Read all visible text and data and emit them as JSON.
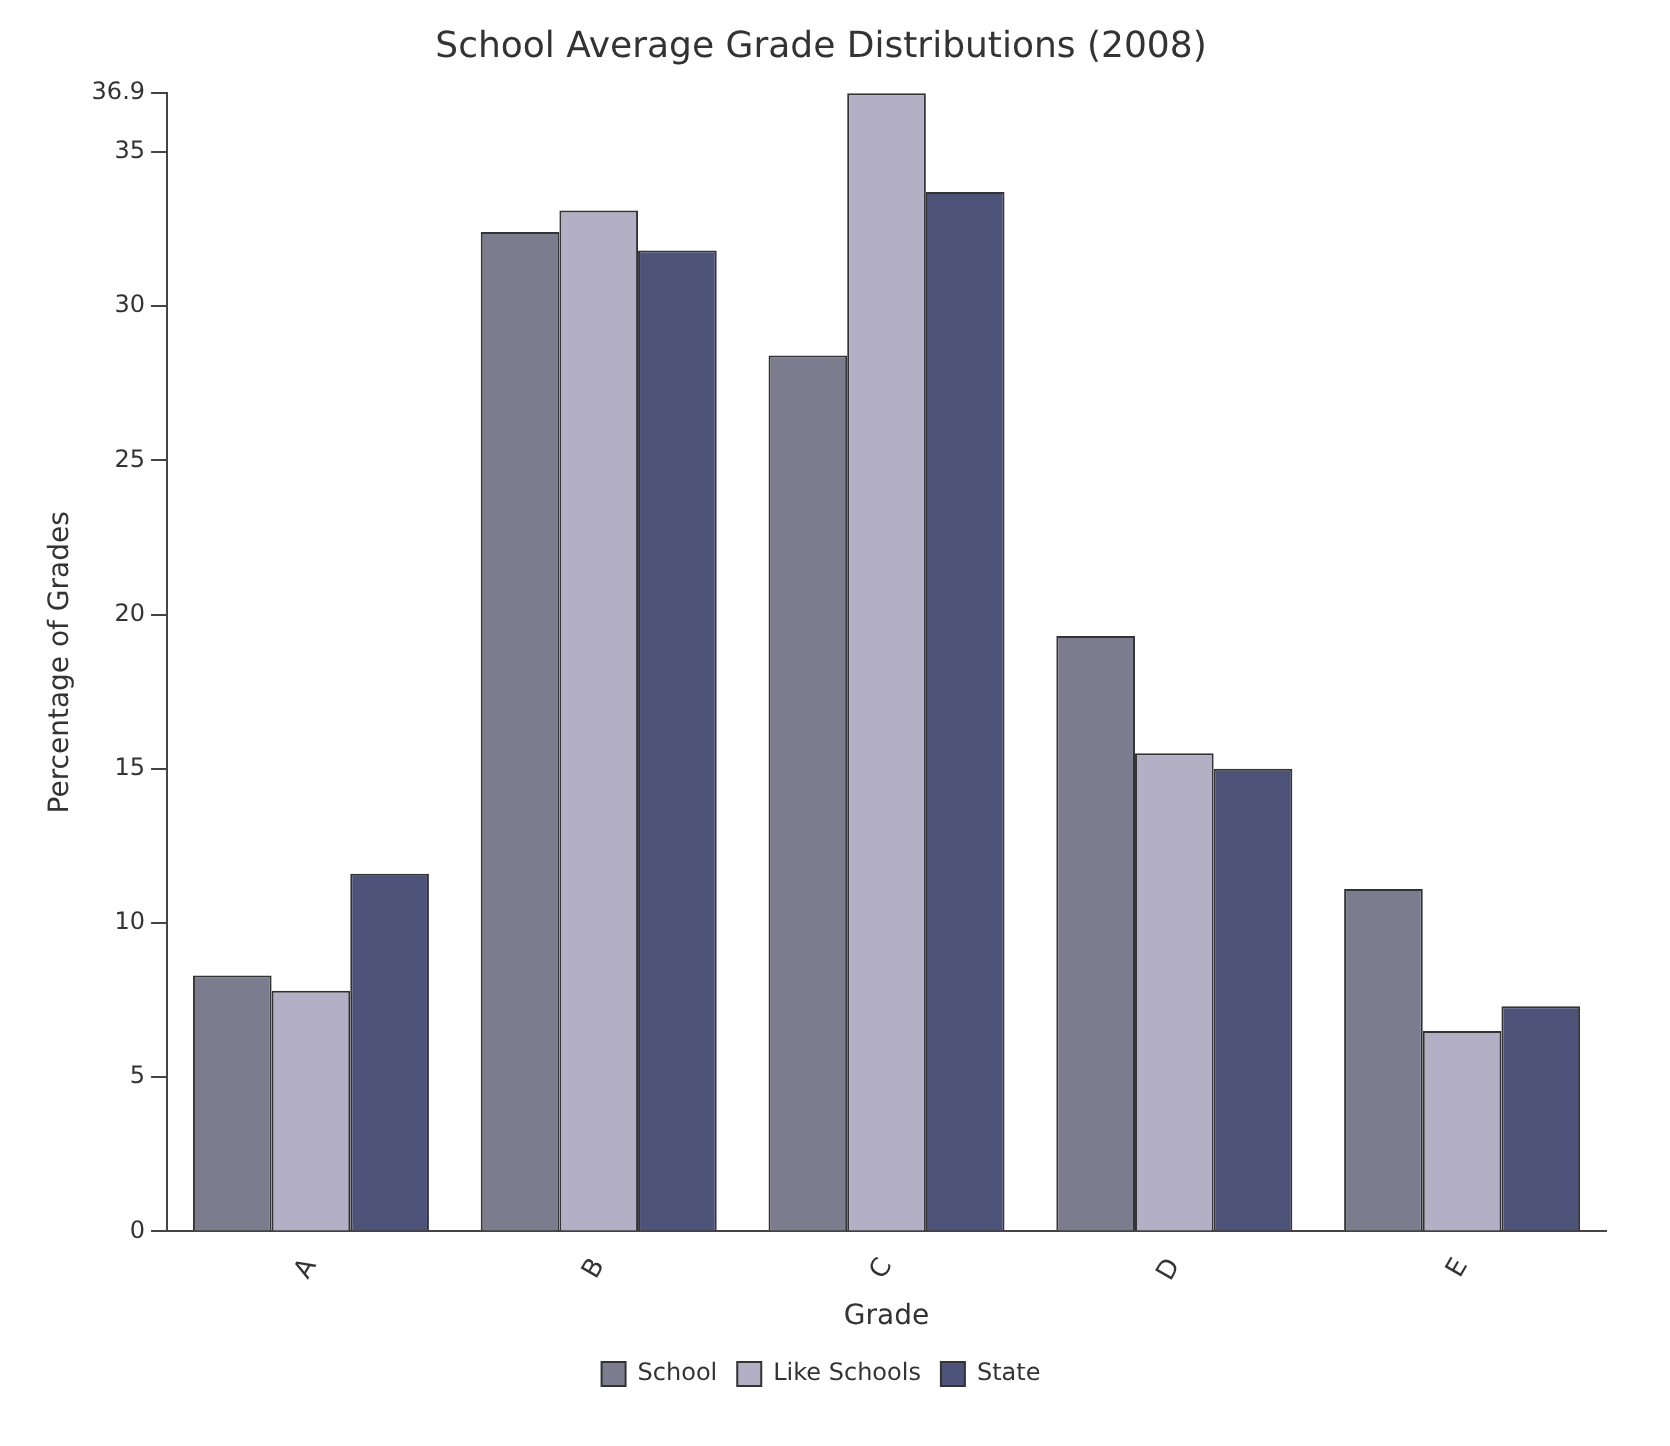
{
  "chart_data": {
    "type": "bar",
    "title": "School Average Grade Distributions (2008)",
    "xlabel": "Grade",
    "ylabel": "Percentage of Grades",
    "categories": [
      "A",
      "B",
      "C",
      "D",
      "E"
    ],
    "series": [
      {
        "name": "School",
        "color": "#7b7d8e",
        "values": [
          8.3,
          32.4,
          28.4,
          19.3,
          11.1
        ]
      },
      {
        "name": "Like Schools",
        "color": "#b3b0c6",
        "values": [
          7.8,
          33.1,
          36.9,
          15.5,
          6.5
        ]
      },
      {
        "name": "State",
        "color": "#4d5279",
        "values": [
          11.6,
          31.8,
          33.7,
          15.0,
          7.3
        ]
      }
    ],
    "ylim": [
      0,
      36.9
    ],
    "yticks": [
      0,
      5,
      10,
      15,
      20,
      25,
      30,
      35,
      36.9
    ],
    "grid": false,
    "legend": "bottom"
  }
}
